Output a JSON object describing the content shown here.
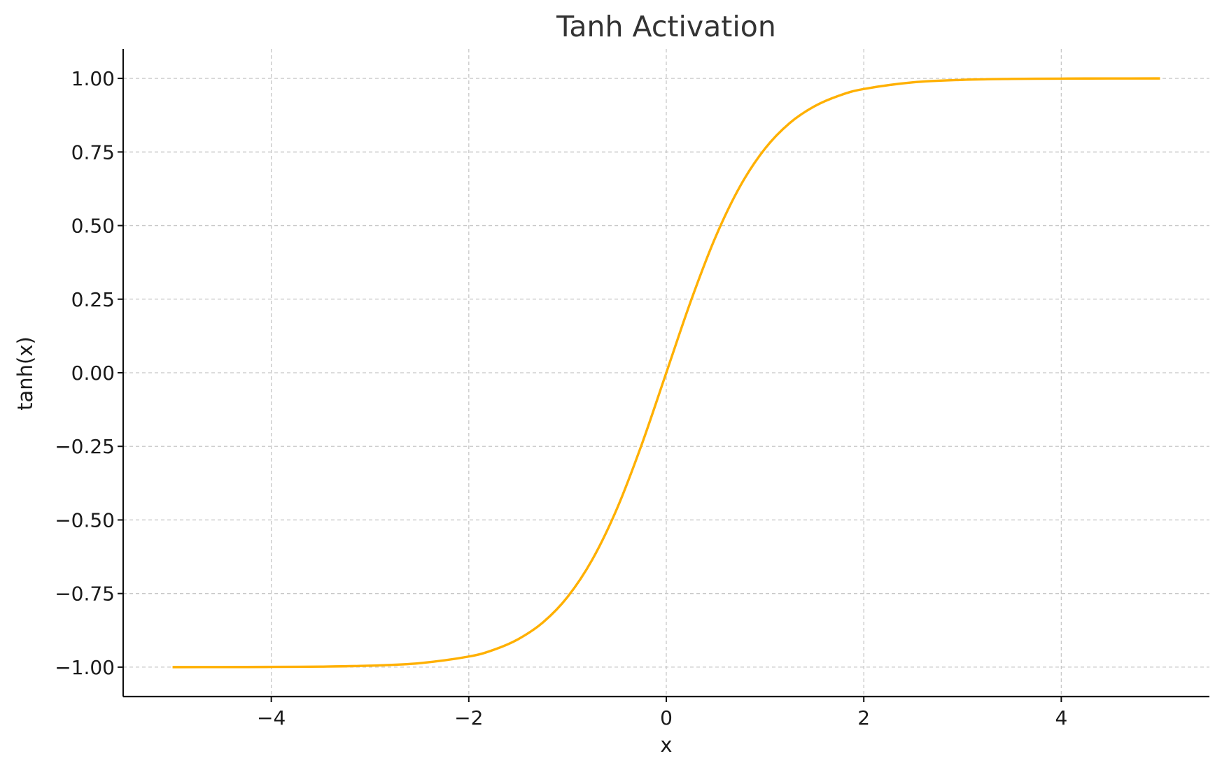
{
  "chart_data": {
    "type": "line",
    "title": "Tanh Activation",
    "xlabel": "x",
    "ylabel": "tanh(x)",
    "xlim": [
      -5.5,
      5.5
    ],
    "ylim": [
      -1.1,
      1.1
    ],
    "x_ticks": [
      -4,
      -2,
      0,
      2,
      4
    ],
    "x_tick_labels": [
      "−4",
      "−2",
      "0",
      "2",
      "4"
    ],
    "y_ticks": [
      -1.0,
      -0.75,
      -0.5,
      -0.25,
      0.0,
      0.25,
      0.5,
      0.75,
      1.0
    ],
    "y_tick_labels": [
      "−1.00",
      "−0.75",
      "−0.50",
      "−0.25",
      "0.00",
      "0.25",
      "0.50",
      "0.75",
      "1.00"
    ],
    "grid": true,
    "series": [
      {
        "color": "#FFB000",
        "x": [
          -5,
          -4.5,
          -4,
          -3.5,
          -3,
          -2.5,
          -2,
          -1.75,
          -1.5,
          -1.25,
          -1,
          -0.75,
          -0.5,
          -0.25,
          0,
          0.25,
          0.5,
          0.75,
          1,
          1.25,
          1.5,
          1.75,
          2,
          2.5,
          3,
          3.5,
          4,
          4.5,
          5
        ],
        "y": [
          -0.9999,
          -0.9998,
          -0.9993,
          -0.9982,
          -0.9951,
          -0.9866,
          -0.964,
          -0.9414,
          -0.9051,
          -0.8483,
          -0.7616,
          -0.6351,
          -0.4621,
          -0.2449,
          0.0,
          0.2449,
          0.4621,
          0.6351,
          0.7616,
          0.8483,
          0.9051,
          0.9414,
          0.964,
          0.9866,
          0.9951,
          0.9982,
          0.9993,
          0.9998,
          0.9999
        ]
      }
    ]
  }
}
